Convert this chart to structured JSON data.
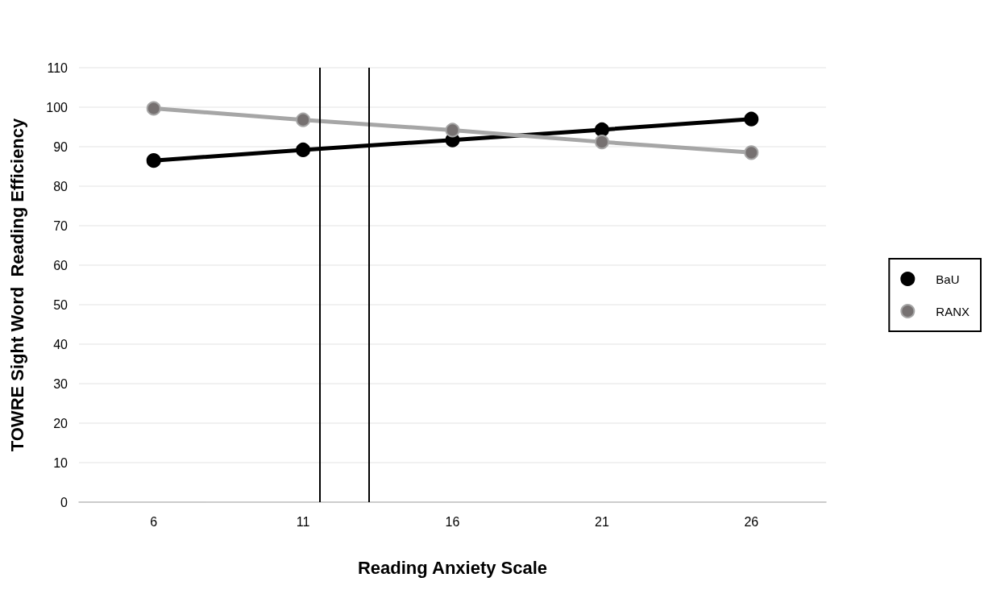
{
  "chart_data": {
    "type": "line",
    "xlabel": "Reading Anxiety Scale",
    "ylabel": "TOWRE Sight Word  Reading Efficiency",
    "x": [
      6,
      11,
      16,
      21,
      26
    ],
    "xlim": [
      3.5,
      28.5
    ],
    "xticks": [
      6,
      11,
      16,
      21,
      26
    ],
    "ylim": [
      0,
      110
    ],
    "yticks": [
      0,
      10,
      20,
      30,
      40,
      50,
      60,
      70,
      80,
      90,
      100,
      110
    ],
    "series": [
      {
        "name": "BaU",
        "color": "#000000",
        "values": [
          86.5,
          89.2,
          91.7,
          94.3,
          97.0
        ]
      },
      {
        "name": "RANX",
        "color": "#a6a6a6",
        "values": [
          99.7,
          96.8,
          94.2,
          91.2,
          88.5
        ]
      }
    ],
    "ref_lines": [
      {
        "axis": "x",
        "value": 11.55,
        "color": "#000000"
      },
      {
        "axis": "x",
        "value": 13.2,
        "color": "#000000"
      }
    ],
    "grid": "y",
    "legend": "right",
    "marker": "circle",
    "line_style": "solid"
  }
}
